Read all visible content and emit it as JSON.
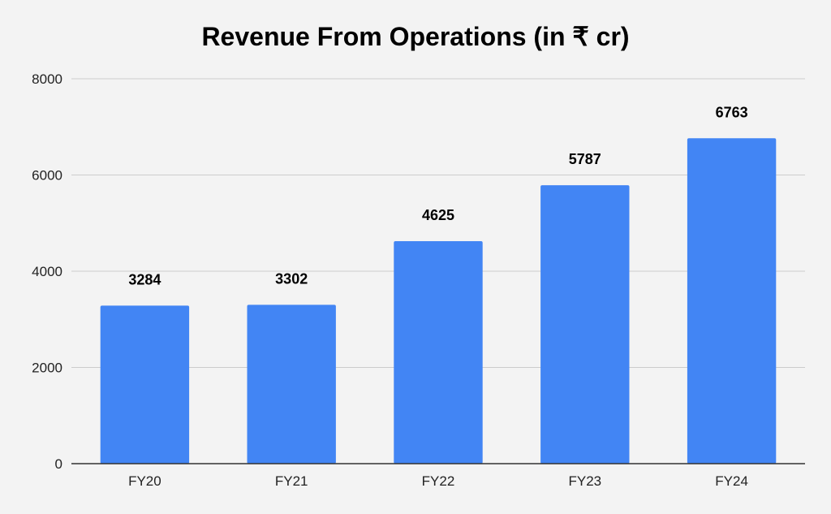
{
  "chart_data": {
    "type": "bar",
    "title": "Revenue From Operations (in ₹ cr)",
    "xlabel": "",
    "ylabel": "",
    "categories": [
      "FY20",
      "FY21",
      "FY22",
      "FY23",
      "FY24"
    ],
    "values": [
      3284,
      3302,
      4625,
      5787,
      6763
    ],
    "ylim": [
      0,
      8000
    ],
    "yticks": [
      "0",
      "2000",
      "4000",
      "6000",
      "8000"
    ],
    "grid": true,
    "legend": "none",
    "bar_color": "#4285f4",
    "gridline_color": "#cccccc",
    "axis_color": "#333333",
    "background_color": "#f3f3f3"
  }
}
